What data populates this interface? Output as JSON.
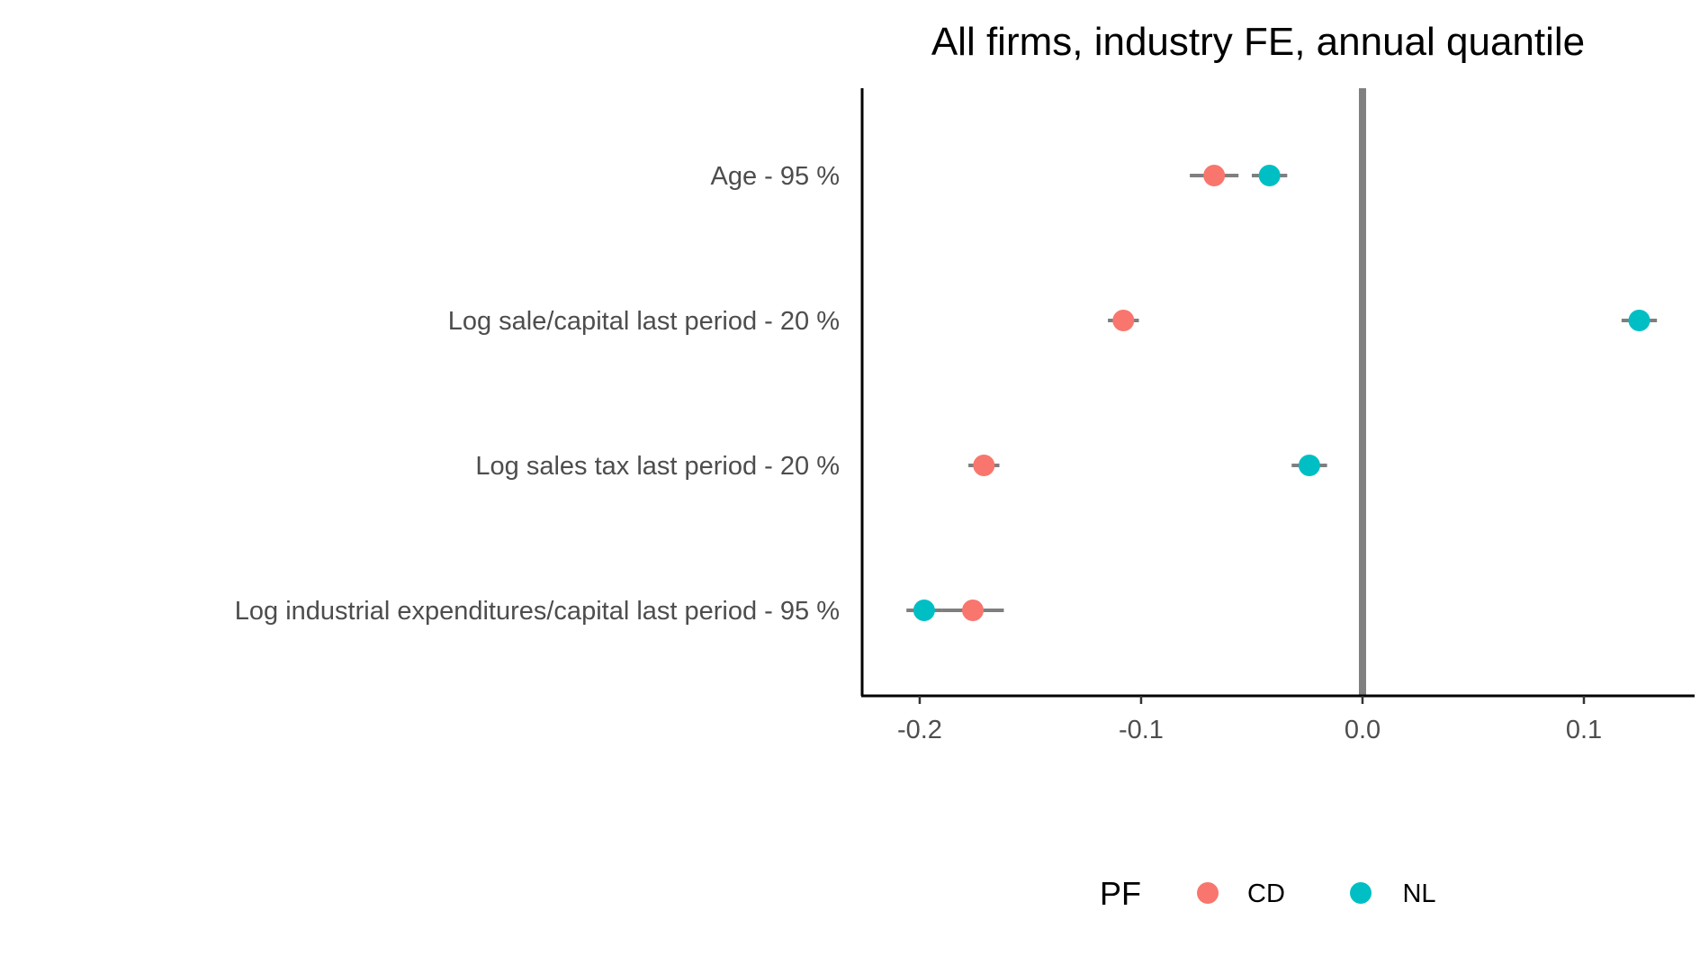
{
  "chart_data": {
    "type": "scatter",
    "title": "All firms, industry FE, annual quantile",
    "xlabel": "",
    "ylabel": "",
    "xlim": [
      -0.226,
      0.15
    ],
    "xticks": [
      -0.2,
      -0.1,
      0.0,
      0.1
    ],
    "xtick_labels": [
      "-0.2",
      "-0.1",
      "0.0",
      "0.1"
    ],
    "reference_line_x": 0.0,
    "categories": [
      "Age - 95 %",
      "Log sale/capital last period - 20 %",
      "Log sales tax last period - 20 %",
      "Log industrial expenditures/capital last period - 95 %"
    ],
    "series": [
      {
        "name": "CD",
        "color": "#F8766D",
        "points": [
          {
            "category": "Age - 95 %",
            "value": -0.067,
            "lower": -0.078,
            "upper": -0.056
          },
          {
            "category": "Log sale/capital last period - 20 %",
            "value": -0.108,
            "lower": -0.115,
            "upper": -0.101
          },
          {
            "category": "Log sales tax last period - 20 %",
            "value": -0.171,
            "lower": -0.178,
            "upper": -0.164
          },
          {
            "category": "Log industrial expenditures/capital last period - 95 %",
            "value": -0.176,
            "lower": -0.19,
            "upper": -0.162
          }
        ]
      },
      {
        "name": "NL",
        "color": "#00BFC4",
        "points": [
          {
            "category": "Age - 95 %",
            "value": -0.042,
            "lower": -0.05,
            "upper": -0.034
          },
          {
            "category": "Log sale/capital last period - 20 %",
            "value": 0.125,
            "lower": 0.117,
            "upper": 0.133
          },
          {
            "category": "Log sales tax last period - 20 %",
            "value": -0.024,
            "lower": -0.032,
            "upper": -0.016
          },
          {
            "category": "Log industrial expenditures/capital last period - 95 %",
            "value": -0.198,
            "lower": -0.206,
            "upper": -0.19
          }
        ]
      }
    ],
    "legend": {
      "title": "PF",
      "position": "bottom",
      "entries": [
        "CD",
        "NL"
      ]
    },
    "errorbar_color": "#7f7f7f",
    "reference_line_color": "#808080",
    "grid": false
  }
}
